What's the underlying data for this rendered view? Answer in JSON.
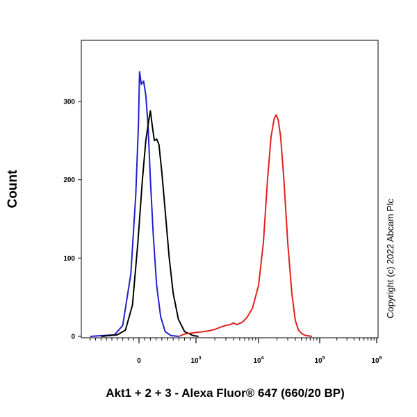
{
  "chart_data": {
    "type": "line",
    "title": "",
    "xlabel": "Akt1 + 2 + 3 - Alexa Fluor® 647 (660/20 BP)",
    "ylabel": "Count",
    "x_scale": "biexponential",
    "xlim": [
      -1000,
      1000000
    ],
    "ylim": [
      0,
      380
    ],
    "y_ticks": [
      0,
      100,
      200,
      300
    ],
    "y_tick_labels": [
      "0",
      "100",
      "200",
      "300"
    ],
    "x_ticks": [
      {
        "value": 0,
        "base": "0",
        "exp": ""
      },
      {
        "value": 1000,
        "base": "10",
        "exp": "3"
      },
      {
        "value": 10000,
        "base": "10",
        "exp": "4"
      },
      {
        "value": 100000,
        "base": "10",
        "exp": "5"
      },
      {
        "value": 1000000,
        "base": "10",
        "exp": "6"
      }
    ],
    "grid": false,
    "legend": "none",
    "series": [
      {
        "color": "#2020d0",
        "points": [
          [
            -900,
            0
          ],
          [
            -450,
            2
          ],
          [
            -300,
            14
          ],
          [
            -150,
            80
          ],
          [
            -60,
            180
          ],
          [
            -10,
            270
          ],
          [
            10,
            338
          ],
          [
            40,
            322
          ],
          [
            80,
            326
          ],
          [
            120,
            308
          ],
          [
            160,
            268
          ],
          [
            200,
            200
          ],
          [
            250,
            130
          ],
          [
            310,
            65
          ],
          [
            380,
            25
          ],
          [
            460,
            6
          ],
          [
            560,
            1
          ],
          [
            700,
            0
          ]
        ]
      },
      {
        "color": "#000000",
        "points": [
          [
            -700,
            0
          ],
          [
            -400,
            2
          ],
          [
            -250,
            8
          ],
          [
            -120,
            40
          ],
          [
            -20,
            120
          ],
          [
            60,
            200
          ],
          [
            120,
            250
          ],
          [
            170,
            275
          ],
          [
            200,
            288
          ],
          [
            230,
            270
          ],
          [
            270,
            250
          ],
          [
            310,
            252
          ],
          [
            350,
            245
          ],
          [
            400,
            210
          ],
          [
            460,
            160
          ],
          [
            530,
            100
          ],
          [
            600,
            55
          ],
          [
            690,
            22
          ],
          [
            800,
            6
          ],
          [
            950,
            1
          ],
          [
            1100,
            0
          ]
        ]
      },
      {
        "color": "#e02020",
        "points": [
          [
            700,
            0
          ],
          [
            800,
            3
          ],
          [
            1000,
            5
          ],
          [
            1300,
            6
          ],
          [
            1600,
            7
          ],
          [
            2000,
            9
          ],
          [
            2500,
            12
          ],
          [
            3000,
            14
          ],
          [
            3500,
            15
          ],
          [
            4000,
            17
          ],
          [
            4500,
            15
          ],
          [
            5500,
            18
          ],
          [
            6500,
            24
          ],
          [
            8000,
            36
          ],
          [
            10000,
            65
          ],
          [
            12000,
            120
          ],
          [
            14000,
            200
          ],
          [
            16000,
            255
          ],
          [
            18000,
            278
          ],
          [
            19500,
            283
          ],
          [
            21000,
            276
          ],
          [
            23000,
            255
          ],
          [
            26000,
            200
          ],
          [
            30000,
            120
          ],
          [
            35000,
            55
          ],
          [
            40000,
            20
          ],
          [
            45000,
            8
          ],
          [
            52000,
            3
          ],
          [
            60000,
            1
          ],
          [
            75000,
            0
          ]
        ]
      }
    ]
  },
  "copyright": "Copyright (c) 2022 Abcam Plc"
}
